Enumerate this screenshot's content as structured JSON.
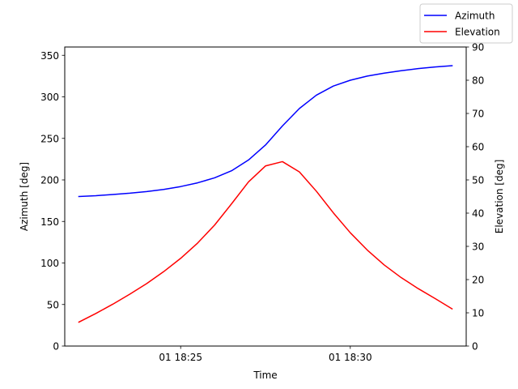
{
  "chart_data": {
    "type": "line",
    "xlabel": "Time",
    "ylabel_left": "Azimuth [deg]",
    "ylabel_right": "Elevation [deg]",
    "x_start": "18:22:00",
    "x_step_seconds": 30,
    "x_range": [
      "18:21:35",
      "18:33:25"
    ],
    "x_ticks": [
      {
        "value": "18:25:00",
        "label": "01 18:25"
      },
      {
        "value": "18:30:00",
        "label": "01 18:30"
      }
    ],
    "ylim_left": [
      0,
      360
    ],
    "yticks_left": [
      0,
      50,
      100,
      150,
      200,
      250,
      300,
      350
    ],
    "ylim_right": [
      0,
      90
    ],
    "yticks_right": [
      0,
      10,
      20,
      30,
      40,
      50,
      60,
      70,
      80,
      90
    ],
    "grid": false,
    "legend_placement": "top-right",
    "series": [
      {
        "name": "Azimuth",
        "axis": "left",
        "color": "#0000ff",
        "values": [
          180,
          181,
          182.5,
          184,
          186,
          188.5,
          192,
          196.5,
          202.5,
          211,
          224,
          242,
          265,
          286,
          302,
          313,
          320,
          325,
          328.5,
          331.5,
          334,
          336,
          337.5
        ]
      },
      {
        "name": "Elevation",
        "axis": "right",
        "color": "#ff0000",
        "values": [
          7.2,
          9.8,
          12.6,
          15.6,
          18.8,
          22.4,
          26.4,
          31,
          36.4,
          42.8,
          49.4,
          54.2,
          55.5,
          52.4,
          46.6,
          40.1,
          34.1,
          28.9,
          24.4,
          20.6,
          17.3,
          14.3,
          11.2
        ]
      }
    ]
  }
}
